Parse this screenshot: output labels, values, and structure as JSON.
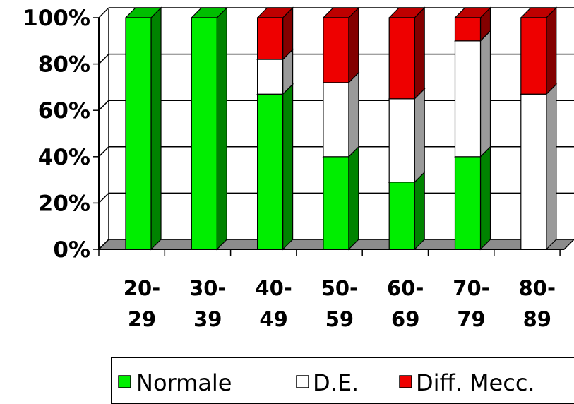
{
  "chart_data": {
    "type": "bar",
    "stacked": true,
    "percent_stacked": true,
    "three_d": true,
    "categories": [
      [
        "20-",
        "29"
      ],
      [
        "30-",
        "39"
      ],
      [
        "40-",
        "49"
      ],
      [
        "50-",
        "59"
      ],
      [
        "60-",
        "69"
      ],
      [
        "70-",
        "79"
      ],
      [
        "80-",
        "89"
      ]
    ],
    "series": [
      {
        "name": "Normale",
        "color": "#00ee00",
        "values": [
          100,
          100,
          67,
          40,
          29,
          40,
          0
        ]
      },
      {
        "name": "D.E.",
        "color": "#ffffff",
        "values": [
          0,
          0,
          15,
          32,
          36,
          50,
          67
        ]
      },
      {
        "name": "Diff. Mecc.",
        "color": "#ee0000",
        "values": [
          0,
          0,
          18,
          28,
          35,
          10,
          33
        ]
      }
    ],
    "y_ticks": [
      "0%",
      "20%",
      "40%",
      "60%",
      "80%",
      "100%"
    ],
    "ylim": [
      0,
      100
    ],
    "grid": true,
    "legend_position": "bottom"
  }
}
